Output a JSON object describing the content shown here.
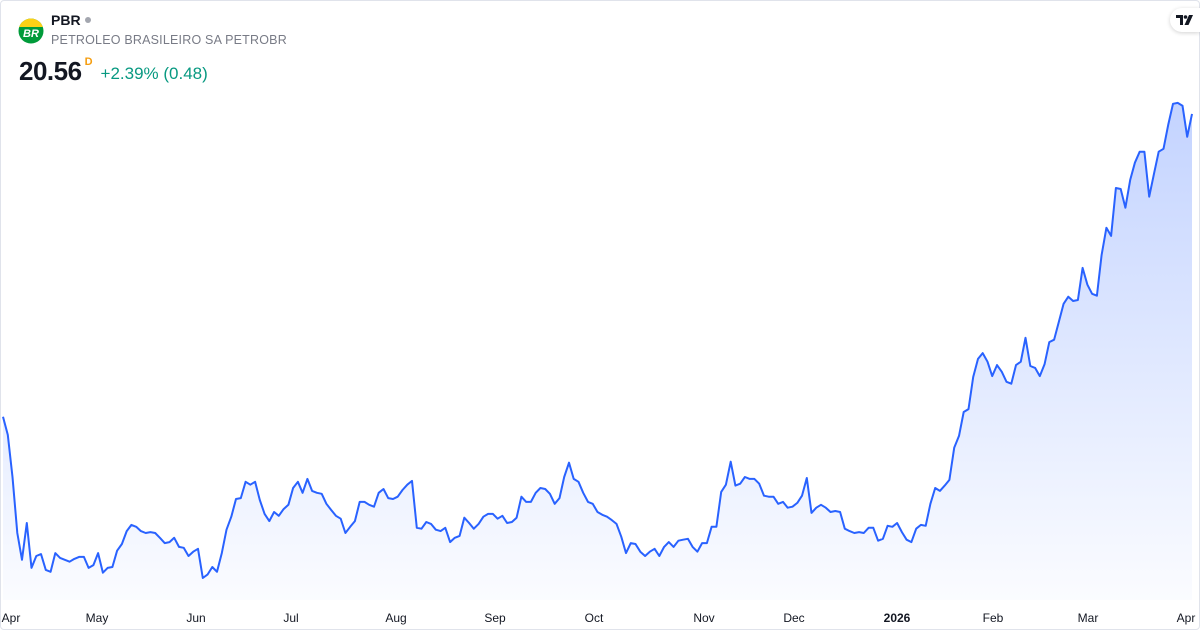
{
  "header": {
    "symbol": "PBR",
    "company_name": "PETROLEO BRASILEIRO SA PETROBR",
    "logo_text": "BR",
    "price": "20.56",
    "interval": "D",
    "change": "+2.39% (0.48)",
    "brand_logo": "TV"
  },
  "colors": {
    "line": "#2962ff",
    "change_positive": "#089981",
    "interval_badge": "#f59d0f",
    "logo_yellow": "#fcd116",
    "logo_green": "#009b3a"
  },
  "chart_data": {
    "type": "area",
    "title": "",
    "xlabel": "",
    "ylabel": "",
    "grid": false,
    "legend": "none",
    "y_axis_visible": false,
    "ylim": [
      10.4,
      22.94
    ],
    "x_tick_labels": [
      "Apr",
      "May",
      "Jun",
      "Jul",
      "Aug",
      "Sep",
      "Oct",
      "Nov",
      "Dec",
      "2026",
      "Feb",
      "Mar",
      "Apr"
    ],
    "values": [
      14.23,
      13.85,
      12.97,
      11.8,
      11.24,
      12.01,
      11.07,
      11.32,
      11.36,
      11.03,
      10.99,
      11.38,
      11.28,
      11.24,
      11.2,
      11.26,
      11.3,
      11.3,
      11.07,
      11.13,
      11.38,
      10.97,
      11.07,
      11.09,
      11.43,
      11.57,
      11.84,
      11.97,
      11.93,
      11.84,
      11.8,
      11.82,
      11.8,
      11.7,
      11.59,
      11.61,
      11.7,
      11.51,
      11.49,
      11.32,
      11.41,
      11.47,
      10.86,
      10.93,
      11.09,
      10.99,
      11.38,
      11.87,
      12.14,
      12.51,
      12.53,
      12.87,
      12.81,
      12.87,
      12.49,
      12.2,
      12.05,
      12.24,
      12.16,
      12.3,
      12.39,
      12.74,
      12.87,
      12.64,
      12.93,
      12.68,
      12.64,
      12.62,
      12.41,
      12.28,
      12.16,
      12.1,
      11.8,
      11.93,
      12.05,
      12.45,
      12.45,
      12.39,
      12.35,
      12.64,
      12.72,
      12.53,
      12.51,
      12.56,
      12.7,
      12.81,
      12.89,
      11.91,
      11.89,
      12.03,
      11.99,
      11.87,
      11.84,
      11.91,
      11.61,
      11.7,
      11.74,
      12.12,
      12.01,
      11.89,
      11.99,
      12.14,
      12.2,
      12.2,
      12.1,
      12.16,
      12.01,
      12.03,
      12.12,
      12.56,
      12.45,
      12.45,
      12.64,
      12.74,
      12.72,
      12.62,
      12.41,
      12.53,
      12.97,
      13.27,
      12.93,
      12.87,
      12.64,
      12.45,
      12.41,
      12.24,
      12.18,
      12.14,
      12.07,
      11.99,
      11.72,
      11.38,
      11.59,
      11.57,
      11.41,
      11.32,
      11.41,
      11.47,
      11.32,
      11.51,
      11.61,
      11.51,
      11.64,
      11.66,
      11.68,
      11.51,
      11.41,
      11.59,
      11.59,
      11.93,
      11.93,
      12.66,
      12.81,
      13.29,
      12.79,
      12.83,
      12.97,
      12.93,
      12.93,
      12.83,
      12.58,
      12.56,
      12.56,
      12.41,
      12.45,
      12.33,
      12.35,
      12.43,
      12.58,
      12.95,
      12.22,
      12.33,
      12.39,
      12.33,
      12.24,
      12.26,
      12.24,
      11.89,
      11.84,
      11.8,
      11.82,
      11.8,
      11.91,
      11.91,
      11.64,
      11.68,
      11.95,
      11.93,
      12.01,
      11.82,
      11.66,
      11.61,
      11.89,
      11.97,
      11.95,
      12.41,
      12.74,
      12.68,
      12.79,
      12.91,
      13.58,
      13.83,
      14.33,
      14.39,
      15.06,
      15.44,
      15.56,
      15.38,
      15.08,
      15.31,
      15.17,
      14.96,
      14.92,
      15.31,
      15.38,
      15.88,
      15.29,
      15.25,
      15.08,
      15.33,
      15.79,
      15.84,
      16.21,
      16.59,
      16.74,
      16.65,
      16.67,
      17.34,
      16.99,
      16.8,
      16.76,
      17.61,
      18.18,
      18.01,
      19.01,
      18.99,
      18.6,
      19.18,
      19.54,
      19.77,
      19.77,
      18.83,
      19.31,
      19.77,
      19.83,
      20.33,
      20.77,
      20.79,
      20.73,
      20.08,
      20.56
    ]
  }
}
